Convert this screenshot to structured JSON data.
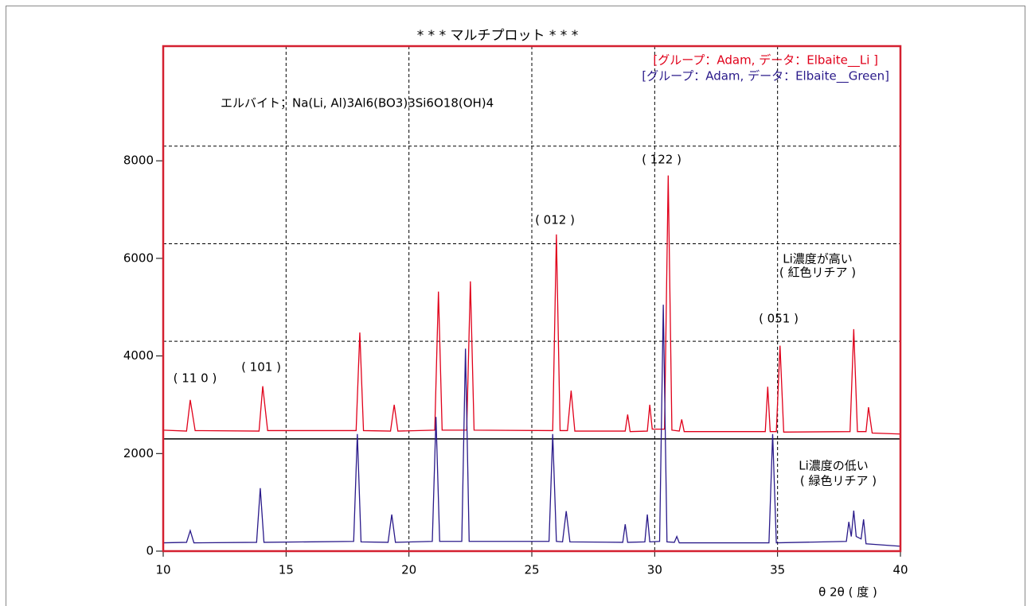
{
  "chart_data": {
    "type": "line",
    "title": "* * *  マルチプロット  * * *",
    "xlabel": "θ   2θ ( 度 )",
    "xlim": [
      10,
      40
    ],
    "xticks": [
      10,
      15,
      20,
      25,
      30,
      35,
      40
    ],
    "ylim": [
      0,
      10350
    ],
    "yticks": [
      0,
      2000,
      4000,
      6000,
      8000
    ],
    "grid_x": [
      15,
      20,
      25,
      30,
      35
    ],
    "grid_y": [
      4300,
      6300,
      8300
    ],
    "baseline": 2300,
    "frame_color": "#d42030",
    "annotations": [
      "エルバイト；Na(Li, Al)3Al6(BO3)3Si6O18(OH)4",
      "( 11 0 )",
      "( 101 )",
      "( 012 )",
      "( 122 )",
      "( 051 )",
      "Li濃度が高い",
      "( 紅色リチア )",
      "Li濃度の低い",
      "( 緑色リチア )"
    ],
    "series": [
      {
        "name": "[グループ：Adam, データ：Elbaite__Li   ]",
        "color": "#e0001a",
        "x": [
          10,
          10.95,
          11.1,
          11.3,
          13.9,
          14.05,
          14.25,
          17.85,
          18.0,
          18.15,
          19.25,
          19.4,
          19.55,
          21.05,
          21.2,
          21.35,
          22.35,
          22.5,
          22.65,
          25.85,
          26.0,
          26.15,
          26.45,
          26.6,
          26.75,
          28.8,
          28.9,
          29.0,
          29.7,
          29.8,
          29.9,
          30.4,
          30.55,
          30.7,
          31.0,
          31.1,
          31.2,
          34.5,
          34.6,
          34.7,
          34.95,
          35.1,
          35.25,
          37.95,
          38.1,
          38.25,
          38.6,
          38.7,
          38.85,
          40
        ],
        "values": [
          2480,
          2460,
          3100,
          2470,
          2460,
          3380,
          2470,
          2470,
          4480,
          2470,
          2460,
          3000,
          2460,
          2480,
          5320,
          2480,
          2480,
          5530,
          2480,
          2470,
          6490,
          2470,
          2470,
          3290,
          2460,
          2460,
          2800,
          2450,
          2460,
          3000,
          2500,
          2500,
          7700,
          2480,
          2460,
          2700,
          2450,
          2450,
          3370,
          2450,
          2450,
          4210,
          2440,
          2450,
          4550,
          2450,
          2450,
          2950,
          2420,
          2400
        ]
      },
      {
        "name": "[グループ：Adam, データ：Elbaite__Green]",
        "color": "#2a1a8a",
        "x": [
          10,
          10.95,
          11.1,
          11.25,
          13.8,
          13.95,
          14.1,
          17.75,
          17.9,
          18.05,
          19.15,
          19.3,
          19.45,
          20.95,
          21.1,
          21.25,
          22.15,
          22.3,
          22.45,
          25.7,
          25.85,
          26.0,
          26.25,
          26.4,
          26.55,
          28.7,
          28.8,
          28.9,
          29.6,
          29.7,
          29.8,
          30.2,
          30.35,
          30.5,
          30.8,
          30.9,
          31.0,
          34.65,
          34.8,
          34.95,
          37.8,
          37.9,
          38.0,
          38.0,
          38.1,
          38.2,
          38.4,
          38.5,
          38.6,
          40
        ],
        "values": [
          170,
          180,
          420,
          170,
          180,
          1290,
          180,
          200,
          2400,
          190,
          180,
          750,
          180,
          200,
          2750,
          200,
          200,
          4150,
          200,
          200,
          2400,
          200,
          190,
          820,
          190,
          180,
          550,
          180,
          190,
          750,
          190,
          200,
          5050,
          190,
          180,
          300,
          170,
          170,
          2400,
          170,
          200,
          600,
          300,
          300,
          830,
          300,
          250,
          650,
          150,
          100
        ]
      }
    ]
  }
}
